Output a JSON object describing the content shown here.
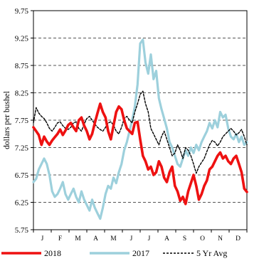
{
  "chart_data": {
    "type": "line",
    "title": "",
    "xlabel": "",
    "ylabel": "dollars per bushel",
    "ylim": [
      5.75,
      9.75
    ],
    "yticks": [
      "5.75",
      "6.25",
      "6.75",
      "7.25",
      "7.75",
      "8.25",
      "8.75",
      "9.25",
      "9.75"
    ],
    "months": [
      "J",
      "F",
      "M",
      "A",
      "M",
      "J",
      "J",
      "A",
      "S",
      "O",
      "N",
      "D"
    ],
    "x_unit": "month index (0 = start of January, 12 = end of December)",
    "grid": "horizontal dashed",
    "legend_position": "bottom",
    "series": [
      {
        "name": "2018",
        "color": "#ee1111",
        "style": "solid-thick",
        "x": [
          0.0,
          0.15,
          0.3,
          0.45,
          0.6,
          0.75,
          0.9,
          1.05,
          1.2,
          1.35,
          1.5,
          1.65,
          1.8,
          1.95,
          2.1,
          2.25,
          2.4,
          2.55,
          2.7,
          2.85,
          3.0,
          3.15,
          3.3,
          3.45,
          3.6,
          3.75,
          3.9,
          4.05,
          4.2,
          4.35,
          4.5,
          4.65,
          4.8,
          4.95,
          5.1,
          5.25,
          5.4,
          5.55,
          5.7,
          5.85,
          6.0,
          6.15,
          6.3,
          6.45,
          6.6,
          6.75,
          6.9,
          7.05,
          7.2,
          7.35,
          7.5,
          7.65,
          7.8,
          7.95,
          8.1,
          8.25,
          8.4,
          8.55,
          8.7,
          8.85,
          9.0,
          9.15,
          9.3,
          9.45,
          9.6,
          9.75,
          9.9,
          10.05,
          10.2,
          10.35,
          10.5,
          10.65,
          10.8,
          10.95,
          11.1,
          11.25,
          11.4,
          11.55,
          11.7,
          11.85,
          12.0
        ],
        "y": [
          7.62,
          7.55,
          7.48,
          7.3,
          7.45,
          7.36,
          7.3,
          7.38,
          7.44,
          7.5,
          7.58,
          7.48,
          7.56,
          7.66,
          7.7,
          7.62,
          7.55,
          7.75,
          7.8,
          7.65,
          7.55,
          7.4,
          7.5,
          7.7,
          7.88,
          8.05,
          7.9,
          7.8,
          7.55,
          7.4,
          7.65,
          7.9,
          8.0,
          7.95,
          7.75,
          7.6,
          7.55,
          7.5,
          7.7,
          7.72,
          7.4,
          7.1,
          7.0,
          6.85,
          6.9,
          6.75,
          6.8,
          7.0,
          6.9,
          6.7,
          6.62,
          6.8,
          6.9,
          6.55,
          6.45,
          6.28,
          6.35,
          6.22,
          6.45,
          6.6,
          6.75,
          6.55,
          6.3,
          6.4,
          6.55,
          6.65,
          6.85,
          6.9,
          7.0,
          7.1,
          7.16,
          7.05,
          7.1,
          7.0,
          6.95,
          7.05,
          7.1,
          6.95,
          6.8,
          6.5,
          6.44
        ]
      },
      {
        "name": "2017",
        "color": "#9dd0dc",
        "style": "solid-thick",
        "x": [
          0.0,
          0.15,
          0.3,
          0.45,
          0.6,
          0.75,
          0.9,
          1.05,
          1.2,
          1.35,
          1.5,
          1.65,
          1.8,
          1.95,
          2.1,
          2.25,
          2.4,
          2.55,
          2.7,
          2.85,
          3.0,
          3.15,
          3.3,
          3.45,
          3.6,
          3.75,
          3.9,
          4.05,
          4.2,
          4.35,
          4.5,
          4.65,
          4.8,
          4.95,
          5.1,
          5.25,
          5.4,
          5.55,
          5.7,
          5.85,
          6.0,
          6.15,
          6.3,
          6.45,
          6.6,
          6.75,
          6.9,
          7.05,
          7.2,
          7.35,
          7.5,
          7.65,
          7.8,
          7.95,
          8.1,
          8.25,
          8.4,
          8.55,
          8.7,
          8.85,
          9.0,
          9.15,
          9.3,
          9.45,
          9.6,
          9.75,
          9.9,
          10.05,
          10.2,
          10.35,
          10.5,
          10.65,
          10.8,
          10.95,
          11.1,
          11.25,
          11.4,
          11.55,
          11.7,
          11.85,
          12.0
        ],
        "y": [
          6.62,
          6.68,
          6.85,
          6.95,
          7.05,
          6.95,
          6.75,
          6.45,
          6.35,
          6.4,
          6.5,
          6.62,
          6.4,
          6.3,
          6.4,
          6.5,
          6.35,
          6.25,
          6.45,
          6.3,
          6.2,
          6.1,
          6.3,
          6.15,
          6.05,
          5.95,
          6.15,
          6.4,
          6.55,
          6.5,
          6.7,
          6.6,
          6.8,
          6.95,
          7.2,
          7.35,
          7.55,
          7.75,
          8.0,
          8.4,
          9.15,
          9.22,
          8.8,
          8.6,
          8.95,
          8.5,
          8.65,
          8.15,
          7.95,
          7.78,
          7.6,
          7.35,
          7.25,
          7.1,
          6.95,
          6.9,
          7.05,
          7.2,
          7.1,
          7.25,
          7.15,
          7.3,
          7.2,
          7.35,
          7.45,
          7.55,
          7.7,
          7.6,
          7.75,
          7.62,
          7.9,
          7.8,
          7.85,
          7.6,
          7.45,
          7.4,
          7.5,
          7.35,
          7.45,
          7.3,
          7.35
        ]
      },
      {
        "name": "5 Yr Avg",
        "color": "#000000",
        "style": "dashed",
        "x": [
          0.0,
          0.15,
          0.3,
          0.45,
          0.6,
          0.75,
          0.9,
          1.05,
          1.2,
          1.35,
          1.5,
          1.65,
          1.8,
          1.95,
          2.1,
          2.25,
          2.4,
          2.55,
          2.7,
          2.85,
          3.0,
          3.15,
          3.3,
          3.45,
          3.6,
          3.75,
          3.9,
          4.05,
          4.2,
          4.35,
          4.5,
          4.65,
          4.8,
          4.95,
          5.1,
          5.25,
          5.4,
          5.55,
          5.7,
          5.85,
          6.0,
          6.15,
          6.3,
          6.45,
          6.6,
          6.75,
          6.9,
          7.05,
          7.2,
          7.35,
          7.5,
          7.65,
          7.8,
          7.95,
          8.1,
          8.25,
          8.4,
          8.55,
          8.7,
          8.85,
          9.0,
          9.15,
          9.3,
          9.45,
          9.6,
          9.75,
          9.9,
          10.05,
          10.2,
          10.35,
          10.5,
          10.65,
          10.8,
          10.95,
          11.1,
          11.25,
          11.4,
          11.55,
          11.7,
          11.85,
          12.0
        ],
        "y": [
          7.7,
          7.98,
          7.88,
          7.82,
          7.78,
          7.7,
          7.6,
          7.55,
          7.62,
          7.7,
          7.72,
          7.65,
          7.6,
          7.58,
          7.62,
          7.7,
          7.72,
          7.6,
          7.55,
          7.68,
          7.78,
          7.82,
          7.75,
          7.68,
          7.62,
          7.58,
          7.55,
          7.62,
          7.7,
          7.72,
          7.66,
          7.55,
          7.5,
          7.62,
          7.78,
          7.82,
          7.75,
          7.7,
          7.9,
          8.05,
          8.22,
          8.28,
          8.05,
          7.9,
          7.6,
          7.5,
          7.4,
          7.3,
          7.45,
          7.55,
          7.4,
          7.25,
          7.1,
          7.15,
          7.3,
          7.2,
          7.05,
          7.25,
          7.2,
          7.1,
          6.95,
          6.78,
          6.9,
          6.98,
          7.05,
          7.18,
          7.3,
          7.38,
          7.35,
          7.28,
          7.35,
          7.45,
          7.5,
          7.55,
          7.6,
          7.55,
          7.48,
          7.52,
          7.58,
          7.45,
          7.3
        ]
      }
    ]
  }
}
